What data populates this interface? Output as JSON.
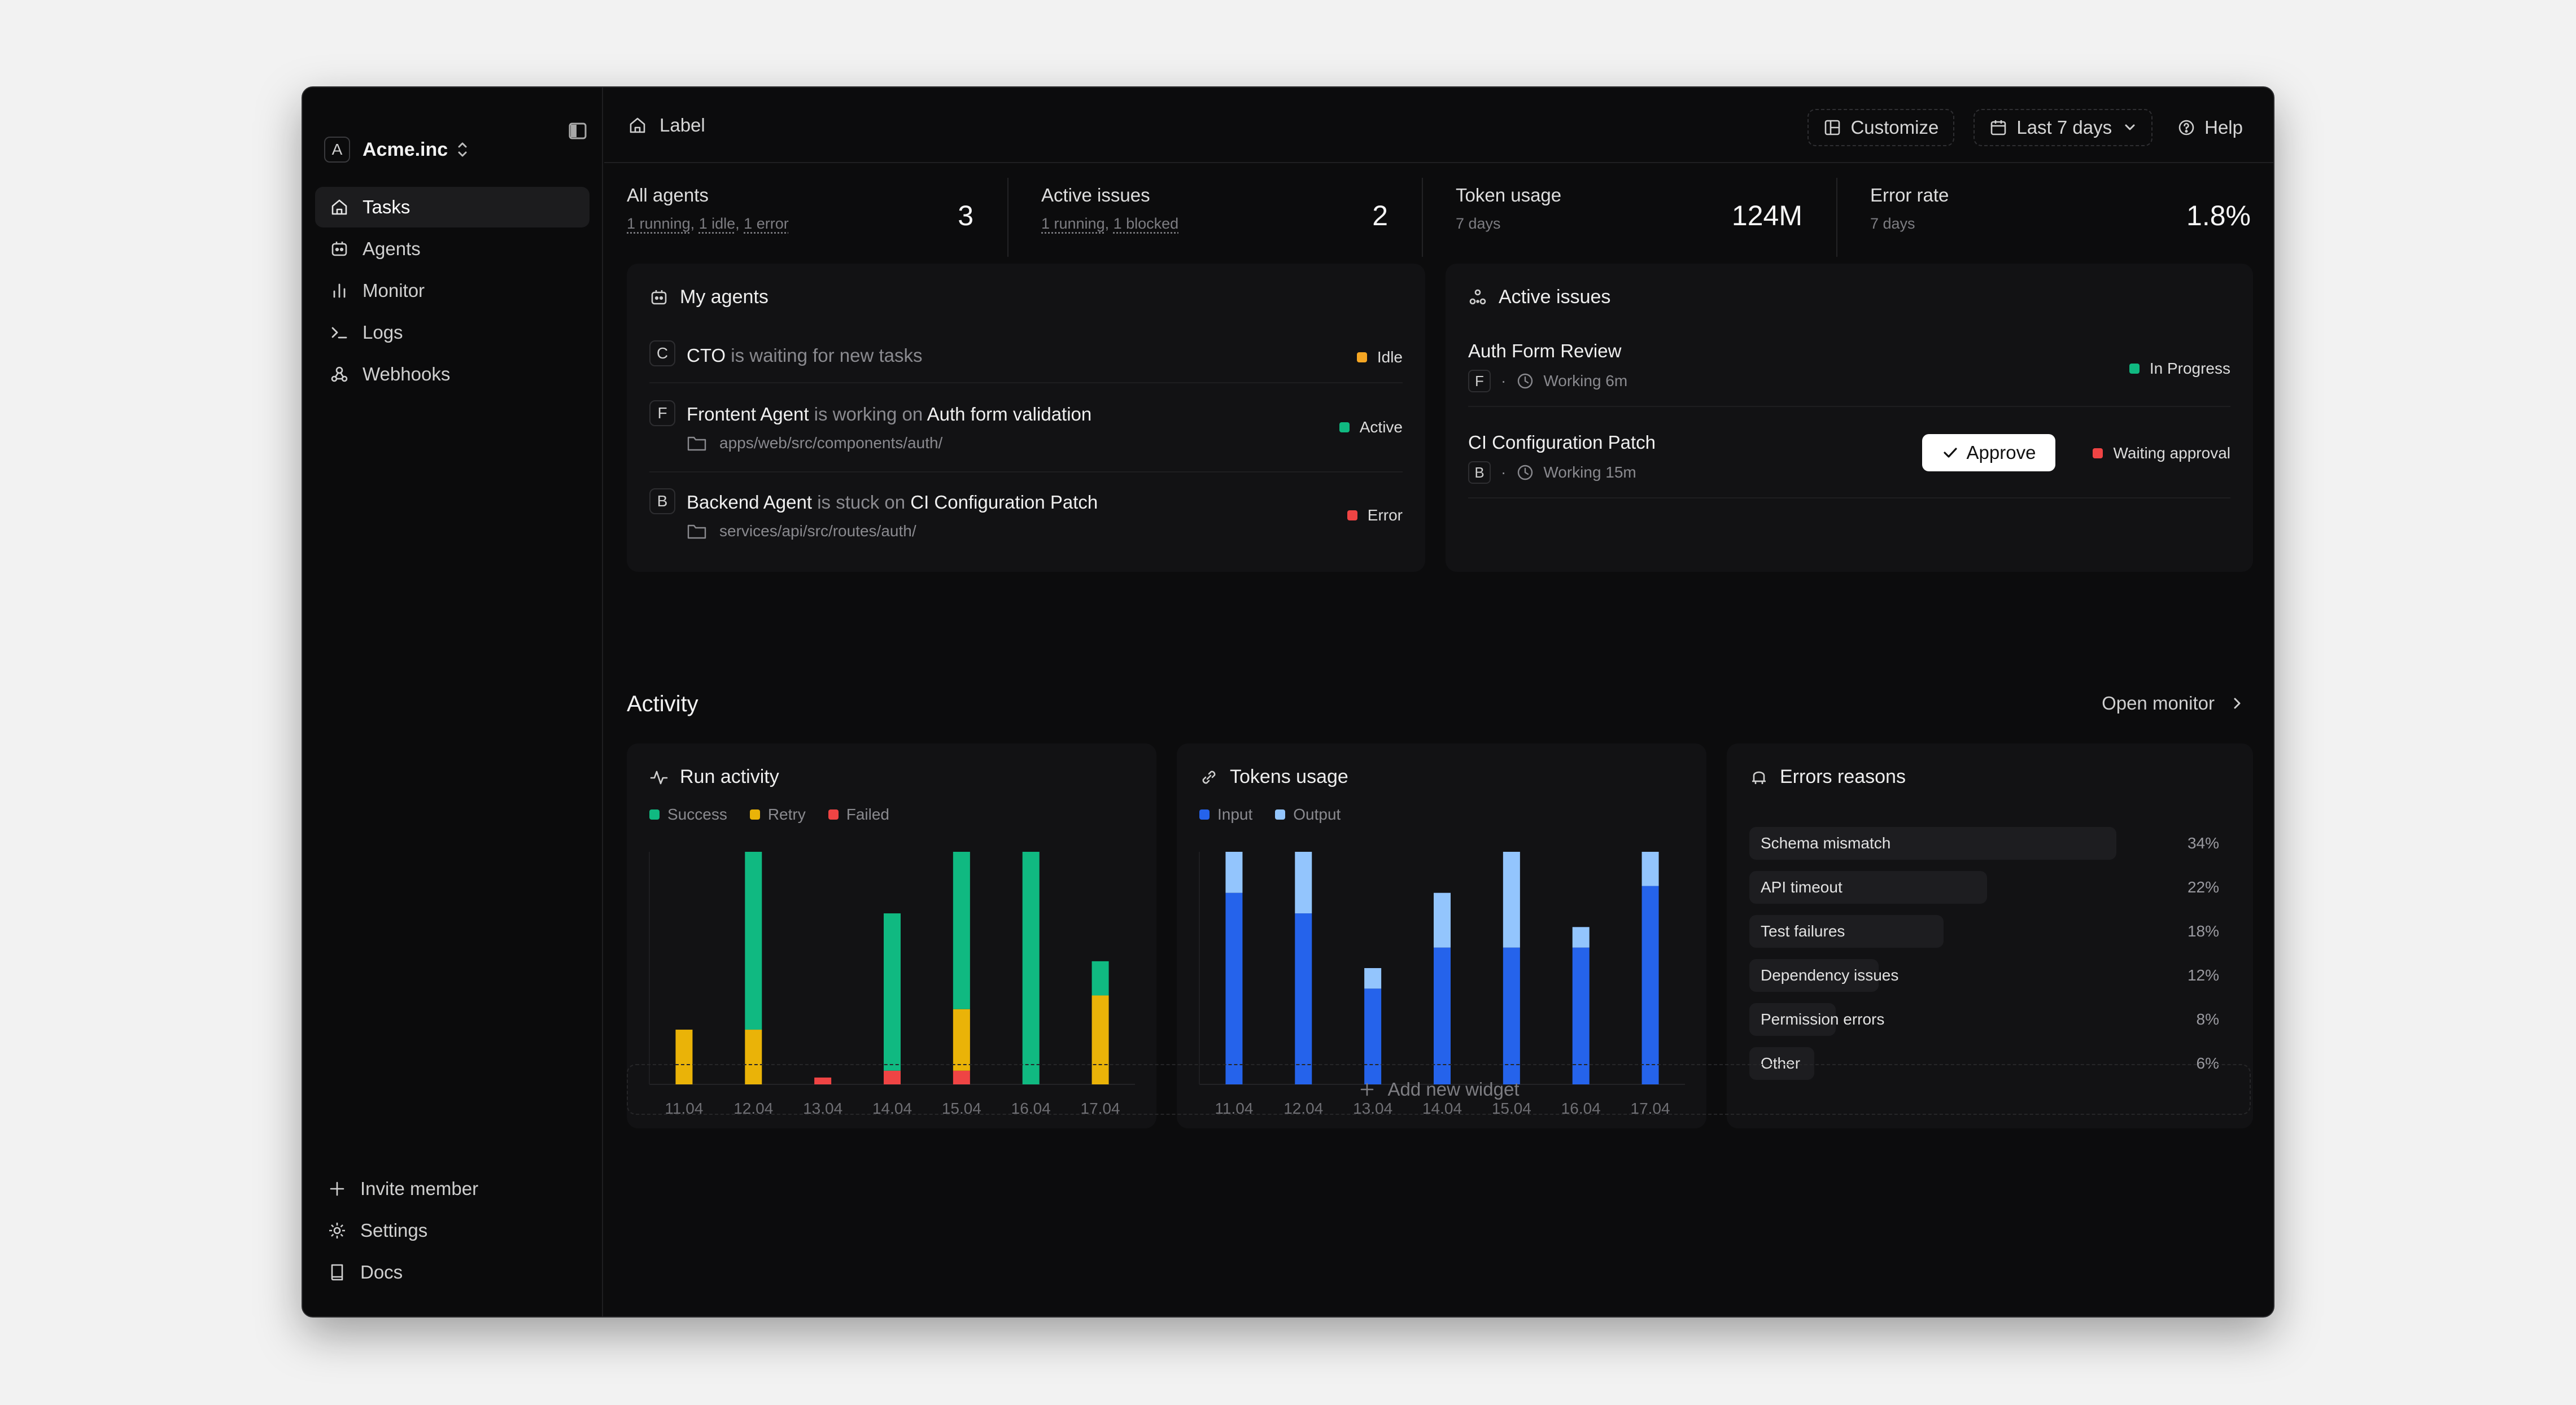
{
  "workspace": {
    "avatar": "A",
    "name": "Acme.inc"
  },
  "nav": [
    {
      "label": "Tasks",
      "icon": "home-icon",
      "active": true
    },
    {
      "label": "Agents",
      "icon": "agent-icon"
    },
    {
      "label": "Monitor",
      "icon": "bar-chart-icon"
    },
    {
      "label": "Logs",
      "icon": "terminal-icon"
    },
    {
      "label": "Webhooks",
      "icon": "webhook-icon"
    }
  ],
  "sidebar_bottom": [
    {
      "label": "Invite member",
      "icon": "plus-icon"
    },
    {
      "label": "Settings",
      "icon": "gear-icon"
    },
    {
      "label": "Docs",
      "icon": "book-icon"
    }
  ],
  "topbar": {
    "breadcrumb": "Label",
    "customize": "Customize",
    "range": "Last 7 days",
    "help": "Help"
  },
  "stats": [
    {
      "label": "All agents",
      "sub_parts": [
        "1 running",
        "1 idle",
        "1 error"
      ],
      "value": "3"
    },
    {
      "label": "Active issues",
      "sub_parts": [
        "1 running",
        "1 blocked"
      ],
      "value": "2"
    },
    {
      "label": "Token usage",
      "sub": "7 days",
      "value": "124M"
    },
    {
      "label": "Error rate",
      "sub": "7 days",
      "value": "1.8%"
    }
  ],
  "my_agents": {
    "title": "My agents",
    "rows": [
      {
        "avatar": "C",
        "name": "CTO",
        "verb": "is waiting for new tasks",
        "target": "",
        "path": "",
        "status": "Idle",
        "status_color": "#f5a623"
      },
      {
        "avatar": "F",
        "name": "Frontent Agent",
        "verb": "is working on",
        "target": "Auth form validation",
        "path": "apps/web/src/components/auth/",
        "status": "Active",
        "status_color": "#10b981"
      },
      {
        "avatar": "B",
        "name": "Backend Agent",
        "verb": "is stuck on",
        "target": "CI Configuration Patch",
        "path": "services/api/src/routes/auth/",
        "status": "Error",
        "status_color": "#ef4444"
      }
    ]
  },
  "active_issues": {
    "title": "Active issues",
    "approve_label": "Approve",
    "rows": [
      {
        "title": "Auth Form Review",
        "avatar": "F",
        "meta": "Working 6m",
        "status": "In Progress",
        "status_color": "#10b981",
        "approve": false
      },
      {
        "title": "CI Configuration Patch",
        "avatar": "B",
        "meta": "Working 15m",
        "status": "Waiting approval",
        "status_color": "#ef4444",
        "approve": true
      }
    ]
  },
  "activity": {
    "title": "Activity",
    "open_monitor": "Open monitor",
    "add_widget": "Add new widget"
  },
  "colors": {
    "success": "#10b981",
    "retry": "#eab308",
    "failed": "#ef4444",
    "input": "#2563eb",
    "output": "#93c5fd"
  },
  "chart_data": [
    {
      "type": "bar",
      "title": "Run activity",
      "stacked": true,
      "categories": [
        "11.04",
        "12.04",
        "13.04",
        "14.04",
        "15.04",
        "16.04",
        "17.04"
      ],
      "series": [
        {
          "name": "Failed",
          "values": [
            0,
            0,
            1,
            2,
            2,
            0,
            0
          ]
        },
        {
          "name": "Retry",
          "values": [
            8,
            8,
            0,
            0,
            9,
            0,
            13
          ]
        },
        {
          "name": "Success",
          "values": [
            0,
            26,
            0,
            23,
            23,
            34,
            5
          ]
        }
      ],
      "ylim": [
        0,
        34
      ]
    },
    {
      "type": "bar",
      "title": "Tokens usage",
      "stacked": true,
      "categories": [
        "11.04",
        "12.04",
        "13.04",
        "14.04",
        "15.04",
        "16.04",
        "17.04"
      ],
      "series": [
        {
          "name": "Input",
          "values": [
            28,
            25,
            14,
            20,
            20,
            20,
            29
          ]
        },
        {
          "name": "Output",
          "values": [
            6,
            9,
            3,
            8,
            14,
            3,
            5
          ]
        }
      ],
      "ylim": [
        0,
        34
      ]
    },
    {
      "type": "bar",
      "title": "Errors reasons",
      "orientation": "horizontal",
      "categories": [
        "Schema mismatch",
        "API timeout",
        "Test failures",
        "Dependency issues",
        "Permission errors",
        "Other"
      ],
      "values": [
        34,
        22,
        18,
        12,
        8,
        6
      ],
      "labels": [
        "34%",
        "22%",
        "18%",
        "12%",
        "8%",
        "6%"
      ],
      "xlim": [
        0,
        34
      ]
    }
  ]
}
